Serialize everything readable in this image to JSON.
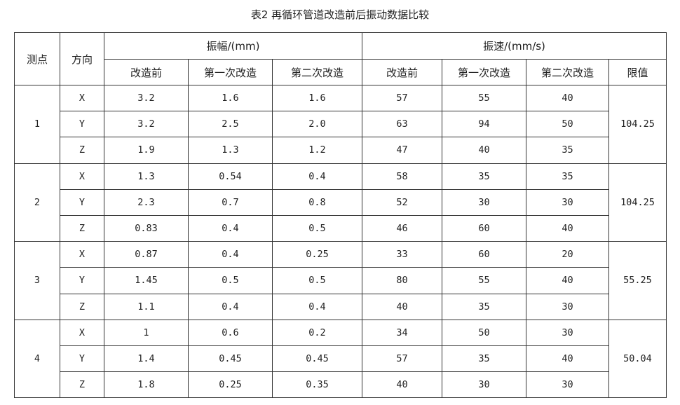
{
  "title": "表2  再循环管道改造前后振动数据比较",
  "headers": {
    "point": "测点",
    "direction": "方向",
    "amplitude": "振幅/(mm)",
    "velocity": "振速/(mm/s)",
    "before": "改造前",
    "first": "第一次改造",
    "second": "第二次改造",
    "limit": "限值"
  },
  "groups": [
    {
      "point": "1",
      "limit": "104.25",
      "rows": [
        {
          "dir": "X",
          "amp": [
            "3.2",
            "1.6",
            "1.6"
          ],
          "vel": [
            "57",
            "55",
            "40"
          ]
        },
        {
          "dir": "Y",
          "amp": [
            "3.2",
            "2.5",
            "2.0"
          ],
          "vel": [
            "63",
            "94",
            "50"
          ]
        },
        {
          "dir": "Z",
          "amp": [
            "1.9",
            "1.3",
            "1.2"
          ],
          "vel": [
            "47",
            "40",
            "35"
          ]
        }
      ]
    },
    {
      "point": "2",
      "limit": "104.25",
      "rows": [
        {
          "dir": "X",
          "amp": [
            "1.3",
            "0.54",
            "0.4"
          ],
          "vel": [
            "58",
            "35",
            "35"
          ]
        },
        {
          "dir": "Y",
          "amp": [
            "2.3",
            "0.7",
            "0.8"
          ],
          "vel": [
            "52",
            "30",
            "30"
          ]
        },
        {
          "dir": "Z",
          "amp": [
            "0.83",
            "0.4",
            "0.5"
          ],
          "vel": [
            "46",
            "60",
            "40"
          ]
        }
      ]
    },
    {
      "point": "3",
      "limit": "55.25",
      "rows": [
        {
          "dir": "X",
          "amp": [
            "0.87",
            "0.4",
            "0.25"
          ],
          "vel": [
            "33",
            "60",
            "20"
          ]
        },
        {
          "dir": "Y",
          "amp": [
            "1.45",
            "0.5",
            "0.5"
          ],
          "vel": [
            "80",
            "55",
            "40"
          ]
        },
        {
          "dir": "Z",
          "amp": [
            "1.1",
            "0.4",
            "0.4"
          ],
          "vel": [
            "40",
            "35",
            "30"
          ]
        }
      ]
    },
    {
      "point": "4",
      "limit": "50.04",
      "rows": [
        {
          "dir": "X",
          "amp": [
            "1",
            "0.6",
            "0.2"
          ],
          "vel": [
            "34",
            "50",
            "30"
          ]
        },
        {
          "dir": "Y",
          "amp": [
            "1.4",
            "0.45",
            "0.45"
          ],
          "vel": [
            "57",
            "35",
            "40"
          ]
        },
        {
          "dir": "Z",
          "amp": [
            "1.8",
            "0.25",
            "0.35"
          ],
          "vel": [
            "40",
            "30",
            "30"
          ]
        }
      ]
    }
  ]
}
